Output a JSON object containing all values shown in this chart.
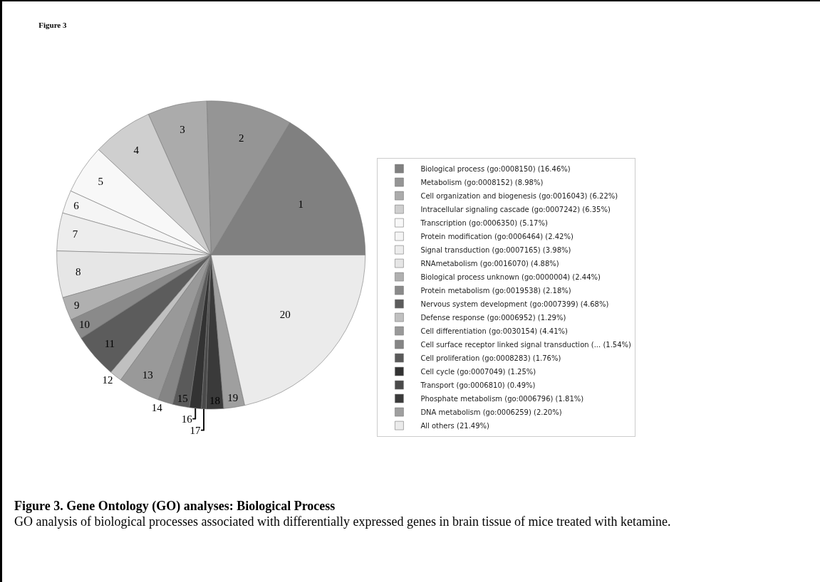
{
  "chart_data": {
    "type": "pie",
    "title": "Figure 3",
    "categories": [
      "Biological process (go:0008150) (16.46%)",
      "Metabolism (go:0008152) (8.98%)",
      "Cell organization and biogenesis (go:0016043) (6.22%)",
      "Intracellular signaling cascade (go:0007242) (6.35%)",
      "Transcription (go:0006350) (5.17%)",
      "Protein modification (go:0006464) (2.42%)",
      "Signal transduction (go:0007165) (3.98%)",
      "RNAmetabolism (go:0016070) (4.88%)",
      "Biological process unknown (go:0000004) (2.44%)",
      "Protein metabolism (go:0019538) (2.18%)",
      "Nervous system development (go:0007399) (4.68%)",
      "Defense response (go:0006952) (1.29%)",
      "Cell differentiation (go:0030154) (4.41%)",
      "Cell surface receptor linked signal transduction (... (1.54%)",
      "Cell proliferation (go:0008283) (1.76%)",
      "Cell cycle (go:0007049) (1.25%)",
      "Transport (go:0006810) (0.49%)",
      "Phosphate metabolism (go:0006796) (1.81%)",
      "DNA metabolism (go:0006259) (2.20%)",
      "All others (21.49%)"
    ],
    "values": [
      16.46,
      8.98,
      6.22,
      6.35,
      5.17,
      2.42,
      3.98,
      4.88,
      2.44,
      2.18,
      4.68,
      1.29,
      4.41,
      1.54,
      1.76,
      1.25,
      0.49,
      1.81,
      2.2,
      21.49
    ],
    "colors": [
      "#808080",
      "#959595",
      "#ababab",
      "#cfcfcf",
      "#f8f8f8",
      "#f5f5f5",
      "#ededed",
      "#e6e6e6",
      "#b0b0b0",
      "#8a8a8a",
      "#5c5c5c",
      "#c0c0c0",
      "#999999",
      "#858585",
      "#5a5a5a",
      "#333333",
      "#4a4a4a",
      "#3a3a3a",
      "#9f9f9f",
      "#ebebeb"
    ],
    "legend": "right",
    "annotations": [
      "Figure 3. Gene Ontology (GO) analyses: Biological Process",
      "GO analysis of biological processes associated with differentially expressed genes in brain tissue of mice treated with ketamine.",
      {
        "text": "1",
        "x": "Biological process (go:0008150) (16.46%)"
      },
      {
        "text": "2",
        "x": "Metabolism (go:0008152) (8.98%)"
      },
      {
        "text": "3",
        "x": "Cell organization and biogenesis (go:0016043) (6.22%)"
      },
      {
        "text": "4",
        "x": "Intracellular signaling cascade (go:0007242) (6.35%)"
      },
      {
        "text": "5",
        "x": "Transcription (go:0006350) (5.17%)"
      },
      {
        "text": "6",
        "x": "Protein modification (go:0006464) (2.42%)"
      },
      {
        "text": "7",
        "x": "Signal transduction (go:0007165) (3.98%)"
      },
      {
        "text": "8",
        "x": "RNAmetabolism (go:0016070) (4.88%)"
      },
      {
        "text": "9",
        "x": "Biological process unknown (go:0000004) (2.44%)"
      },
      {
        "text": "10",
        "x": "Protein metabolism (go:0019538) (2.18%)"
      },
      {
        "text": "11",
        "x": "Nervous system development (go:0007399) (4.68%)"
      },
      {
        "text": "12",
        "x": "Defense response (go:0006952) (1.29%)"
      },
      {
        "text": "13",
        "x": "Cell differentiation (go:0030154) (4.41%)"
      },
      {
        "text": "14",
        "x": "Cell surface receptor linked signal transduction (... (1.54%)"
      },
      {
        "text": "15",
        "x": "Cell proliferation (go:0008283) (1.76%)"
      },
      {
        "text": "16",
        "x": "Cell cycle (go:0007049) (1.25%)"
      },
      {
        "text": "17",
        "x": "Transport (go:0006810) (0.49%)"
      },
      {
        "text": "18",
        "x": "Phosphate metabolism (go:0006796) (1.81%)"
      },
      {
        "text": "19",
        "x": "DNA metabolism (go:0006259) (2.20%)"
      },
      {
        "text": "20",
        "x": "All others (21.49%)"
      }
    ]
  }
}
